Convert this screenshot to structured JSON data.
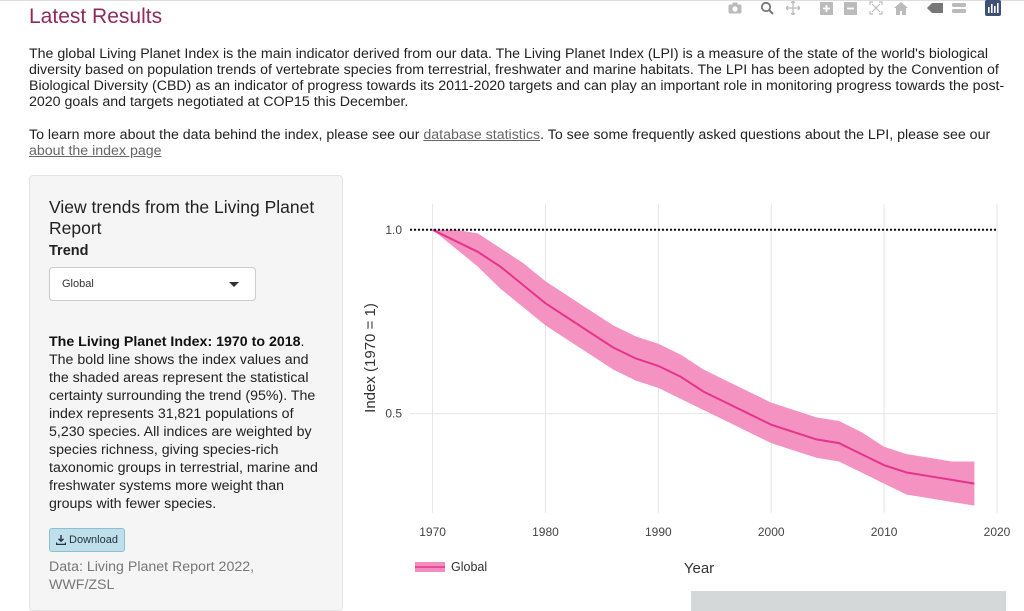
{
  "page": {
    "title": "Latest Results",
    "intro_paragraph": "The global Living Planet Index is the main indicator derived from our data. The Living Planet Index (LPI) is a measure of the state of the world's biological diversity based on population trends of vertebrate species from terrestrial, freshwater and marine habitats. The LPI has been adopted by the Convention of Biological Diversity (CBD) as an indicator of progress towards its 2011-2020 targets and can play an important role in monitoring progress towards the post-2020 goals and targets negotiated at COP15 this December.",
    "learn_more_prefix": "To learn more about the data behind the index, please see our ",
    "database_statistics_link": "database statistics",
    "learn_more_middle": ". To see some frequently asked questions about the LPI, please see our ",
    "about_index_link": "about the index page"
  },
  "sidebar": {
    "heading": "View trends from the Living Planet Report",
    "trend_label": "Trend",
    "trend_selected": "Global",
    "description_bold": "The Living Planet Index: 1970 to 2018",
    "description_rest": ". The bold line shows the index values and the shaded areas represent the statistical certainty surrounding the trend (95%). The index represents 31,821 populations of 5,230 species. All indices are weighted by species richness, giving species-rich taxonomic groups in terrestrial, marine and freshwater systems more weight than groups with fewer species.",
    "download_label": "Download",
    "source_text": "Data: Living Planet Report 2022, WWF/ZSL"
  },
  "modebar": {
    "icons": [
      "camera-icon",
      "zoom-icon",
      "pan-icon",
      "zoom-in-icon",
      "zoom-out-icon",
      "autoscale-icon",
      "reset-axes-icon",
      "spike-lines-icon",
      "compare-hover-icon",
      "plotly-logo-icon"
    ]
  },
  "colors": {
    "title": "#8e2a5e",
    "series_line": "#e8338c",
    "series_band": "#f38dbf"
  },
  "chart_data": {
    "type": "line",
    "title": "",
    "xlabel": "Year",
    "ylabel": "Index (1970 = 1)",
    "xlim": [
      1968,
      2020
    ],
    "ylim": [
      0.23,
      1.07
    ],
    "xticks": [
      1970,
      1980,
      1990,
      2000,
      2010,
      2020
    ],
    "yticks": [
      0.5,
      1.0
    ],
    "ytick_labels": [
      "0.5",
      "1.0"
    ],
    "reference_line": {
      "y": 1.0,
      "style": "dotted"
    },
    "grid": true,
    "legend": "bottom-left",
    "series": [
      {
        "name": "Global",
        "x": [
          1970,
          1972,
          1974,
          1976,
          1978,
          1980,
          1982,
          1984,
          1986,
          1988,
          1990,
          1992,
          1994,
          1996,
          1998,
          2000,
          2002,
          2004,
          2006,
          2008,
          2010,
          2012,
          2014,
          2016,
          2018
        ],
        "y": [
          1.0,
          0.97,
          0.94,
          0.9,
          0.85,
          0.8,
          0.76,
          0.72,
          0.68,
          0.65,
          0.63,
          0.6,
          0.56,
          0.53,
          0.5,
          0.47,
          0.45,
          0.43,
          0.42,
          0.39,
          0.36,
          0.34,
          0.33,
          0.32,
          0.31
        ],
        "lower": [
          1.0,
          0.95,
          0.9,
          0.84,
          0.79,
          0.74,
          0.7,
          0.66,
          0.62,
          0.59,
          0.57,
          0.54,
          0.51,
          0.48,
          0.45,
          0.42,
          0.4,
          0.38,
          0.37,
          0.34,
          0.31,
          0.28,
          0.27,
          0.26,
          0.25
        ],
        "upper": [
          1.0,
          1.0,
          0.99,
          0.95,
          0.91,
          0.86,
          0.82,
          0.78,
          0.74,
          0.71,
          0.69,
          0.66,
          0.62,
          0.59,
          0.56,
          0.53,
          0.51,
          0.49,
          0.48,
          0.45,
          0.41,
          0.39,
          0.38,
          0.37,
          0.37
        ]
      }
    ]
  }
}
